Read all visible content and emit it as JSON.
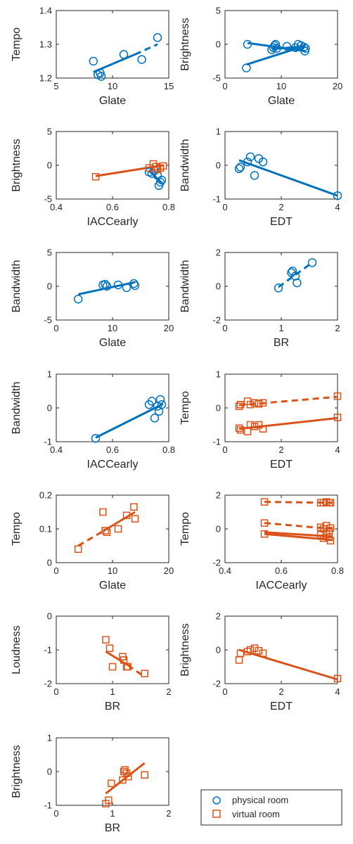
{
  "colors": {
    "physical": "#0072BD",
    "virtual": "#D95319",
    "axis": "#262626"
  },
  "legend": {
    "position": "bottom-right",
    "entries": [
      {
        "label": "physical room",
        "marker": "circle",
        "color": "#0072BD"
      },
      {
        "label": "virtual room",
        "marker": "square",
        "color": "#D95319"
      }
    ]
  },
  "chart_data": [
    {
      "type": "scatter",
      "xlabel": "Glate",
      "ylabel": "Tempo",
      "xlim": [
        5,
        15
      ],
      "ylim": [
        1.2,
        1.4
      ],
      "xticks": [
        5,
        10,
        15
      ],
      "xtick_labels": [
        "5",
        "10",
        "15"
      ],
      "yticks": [
        1.2,
        1.3,
        1.4
      ],
      "ytick_labels": [
        "1.2",
        "1.3",
        "1.4"
      ],
      "series": [
        {
          "group": "physical",
          "marker": "circle",
          "x": [
            8.3,
            8.7,
            9.0,
            8.9,
            11.0,
            12.6,
            14.0
          ],
          "y": [
            1.25,
            1.21,
            1.205,
            1.215,
            1.27,
            1.255,
            1.32
          ]
        }
      ],
      "fits": [
        {
          "group": "physical",
          "x": [
            8.3,
            12.0
          ],
          "y": [
            1.218,
            1.27
          ],
          "style": "solid"
        },
        {
          "group": "physical",
          "x": [
            12.0,
            14.0
          ],
          "y": [
            1.27,
            1.3
          ],
          "style": "dashed"
        }
      ]
    },
    {
      "type": "scatter",
      "xlabel": "Glate",
      "ylabel": "Brightness",
      "xlim": [
        0,
        20
      ],
      "ylim": [
        -5,
        5
      ],
      "xticks": [
        0,
        10,
        20
      ],
      "xtick_labels": [
        "0",
        "10",
        "20"
      ],
      "yticks": [
        -5,
        0,
        5
      ],
      "ytick_labels": [
        "-5",
        "0",
        "5"
      ],
      "series": [
        {
          "group": "physical",
          "marker": "circle",
          "x": [
            3.8,
            4.0,
            8.3,
            8.6,
            8.8,
            9.0,
            9.2,
            11.0,
            12.5,
            13.0,
            13.5,
            14.0,
            14.2,
            14.3
          ],
          "y": [
            -3.5,
            0.0,
            -0.8,
            -0.5,
            -0.2,
            0.0,
            -0.6,
            -0.3,
            -0.5,
            0.0,
            -0.2,
            -0.4,
            -1.0,
            -0.6
          ]
        }
      ],
      "fits": [
        {
          "group": "physical",
          "x": [
            3.8,
            14.3
          ],
          "y": [
            -3.0,
            -0.2
          ],
          "style": "solid"
        },
        {
          "group": "physical",
          "x": [
            4.0,
            14.3
          ],
          "y": [
            0.2,
            -1.0
          ],
          "style": "solid"
        },
        {
          "group": "physical",
          "x": [
            8.3,
            14.3
          ],
          "y": [
            -0.7,
            -0.3
          ],
          "style": "solid"
        }
      ]
    },
    {
      "type": "scatter",
      "xlabel": "IACCearly",
      "ylabel": "Brightness",
      "xlim": [
        0.4,
        0.8
      ],
      "ylim": [
        -5,
        5
      ],
      "xticks": [
        0.4,
        0.6,
        0.8
      ],
      "xtick_labels": [
        "0.4",
        "0.6",
        "0.8"
      ],
      "yticks": [
        -5,
        0,
        5
      ],
      "ytick_labels": [
        "-5",
        "0",
        "5"
      ],
      "series": [
        {
          "group": "physical",
          "marker": "circle",
          "x": [
            0.73,
            0.74,
            0.75,
            0.76,
            0.77,
            0.765,
            0.775
          ],
          "y": [
            -1.0,
            -1.2,
            -0.8,
            -1.5,
            -2.5,
            -3.0,
            -2.2
          ]
        },
        {
          "group": "virtual",
          "marker": "square",
          "x": [
            0.54,
            0.73,
            0.745,
            0.755,
            0.76,
            0.77,
            0.78
          ],
          "y": [
            -1.7,
            -0.4,
            0.2,
            -0.2,
            -0.6,
            -0.4,
            -0.1
          ]
        }
      ],
      "fits": [
        {
          "group": "physical",
          "x": [
            0.73,
            0.78
          ],
          "y": [
            -0.8,
            -2.8
          ],
          "style": "solid"
        },
        {
          "group": "virtual",
          "x": [
            0.54,
            0.78
          ],
          "y": [
            -1.6,
            0.0
          ],
          "style": "solid"
        }
      ]
    },
    {
      "type": "scatter",
      "xlabel": "EDT",
      "ylabel": "Bandwidth",
      "xlim": [
        0,
        4
      ],
      "ylim": [
        -1,
        1
      ],
      "xticks": [
        0,
        2,
        4
      ],
      "xtick_labels": [
        "0",
        "2",
        "4"
      ],
      "yticks": [
        -1,
        0,
        1
      ],
      "ytick_labels": [
        "-1",
        "0",
        "1"
      ],
      "series": [
        {
          "group": "physical",
          "marker": "circle",
          "x": [
            0.5,
            0.55,
            0.8,
            0.9,
            1.05,
            1.2,
            1.35,
            4.0
          ],
          "y": [
            -0.1,
            -0.05,
            0.1,
            0.25,
            -0.3,
            0.2,
            0.1,
            -0.9
          ]
        }
      ],
      "fits": [
        {
          "group": "physical",
          "x": [
            0.5,
            4.0
          ],
          "y": [
            0.15,
            -0.9
          ],
          "style": "solid"
        }
      ]
    },
    {
      "type": "scatter",
      "xlabel": "Glate",
      "ylabel": "Bandwidth",
      "xlim": [
        0,
        20
      ],
      "ylim": [
        -5,
        5
      ],
      "xticks": [
        0,
        10,
        20
      ],
      "xtick_labels": [
        "0",
        "10",
        "20"
      ],
      "yticks": [
        -5,
        0,
        5
      ],
      "ytick_labels": [
        "-5",
        "0",
        "5"
      ],
      "series": [
        {
          "group": "physical",
          "marker": "circle",
          "x": [
            3.9,
            8.3,
            8.7,
            9.0,
            11.0,
            12.5,
            13.8,
            14.0
          ],
          "y": [
            -1.9,
            0.2,
            0.3,
            0.0,
            0.2,
            -0.2,
            0.4,
            0.1
          ]
        }
      ],
      "fits": [
        {
          "group": "physical",
          "x": [
            3.9,
            14.0
          ],
          "y": [
            -1.2,
            0.6
          ],
          "style": "solid"
        }
      ]
    },
    {
      "type": "scatter",
      "xlabel": "BR",
      "ylabel": "Bandwidth",
      "xlim": [
        0,
        2
      ],
      "ylim": [
        -2,
        2
      ],
      "xticks": [
        0,
        1,
        2
      ],
      "xtick_labels": [
        "0",
        "1",
        "2"
      ],
      "yticks": [
        -2,
        0,
        2
      ],
      "ytick_labels": [
        "-2",
        "0",
        "2"
      ],
      "series": [
        {
          "group": "physical",
          "marker": "circle",
          "x": [
            0.95,
            1.18,
            1.2,
            1.25,
            1.28,
            1.55
          ],
          "y": [
            -0.1,
            0.8,
            0.9,
            0.6,
            0.2,
            1.4
          ]
        }
      ],
      "fits": [
        {
          "group": "physical",
          "x": [
            0.95,
            1.55
          ],
          "y": [
            -0.05,
            1.4
          ],
          "style": "dashed"
        }
      ]
    },
    {
      "type": "scatter",
      "xlabel": "IACCearly",
      "ylabel": "Bandwidth",
      "xlim": [
        0.4,
        0.8
      ],
      "ylim": [
        -1,
        1
      ],
      "xticks": [
        0.4,
        0.6,
        0.8
      ],
      "xtick_labels": [
        "0.4",
        "0.6",
        "0.8"
      ],
      "yticks": [
        -1,
        0,
        1
      ],
      "ytick_labels": [
        "-1",
        "0",
        "1"
      ],
      "series": [
        {
          "group": "physical",
          "marker": "circle",
          "x": [
            0.54,
            0.73,
            0.74,
            0.75,
            0.76,
            0.765,
            0.77,
            0.775
          ],
          "y": [
            -0.9,
            0.1,
            0.2,
            -0.3,
            0.05,
            -0.1,
            0.25,
            0.1
          ]
        }
      ],
      "fits": [
        {
          "group": "physical",
          "x": [
            0.54,
            0.78
          ],
          "y": [
            -0.88,
            0.12
          ],
          "style": "solid"
        }
      ]
    },
    {
      "type": "scatter",
      "xlabel": "EDT",
      "ylabel": "Tempo",
      "xlim": [
        0,
        4
      ],
      "ylim": [
        -1,
        1
      ],
      "xticks": [
        0,
        2,
        4
      ],
      "xtick_labels": [
        "0",
        "2",
        "4"
      ],
      "yticks": [
        -1,
        0,
        1
      ],
      "ytick_labels": [
        "-1",
        "0",
        "1"
      ],
      "series": [
        {
          "group": "virtual",
          "marker": "square",
          "x": [
            0.5,
            0.55,
            0.8,
            0.9,
            1.05,
            1.2,
            1.35,
            4.0
          ],
          "y": [
            0.05,
            0.1,
            0.2,
            0.1,
            0.15,
            0.12,
            0.15,
            0.35
          ]
        },
        {
          "group": "virtual",
          "marker": "square",
          "x": [
            0.5,
            0.55,
            0.8,
            0.9,
            1.05,
            1.2,
            1.35,
            4.0
          ],
          "y": [
            -0.6,
            -0.65,
            -0.7,
            -0.5,
            -0.55,
            -0.5,
            -0.62,
            -0.28
          ]
        }
      ],
      "fits": [
        {
          "group": "virtual",
          "x": [
            0.5,
            4.0
          ],
          "y": [
            0.08,
            0.33
          ],
          "style": "dashed"
        },
        {
          "group": "virtual",
          "x": [
            0.5,
            4.0
          ],
          "y": [
            -0.62,
            -0.3
          ],
          "style": "solid"
        }
      ]
    },
    {
      "type": "scatter",
      "xlabel": "Glate",
      "ylabel": "Tempo",
      "xlim": [
        0,
        20
      ],
      "ylim": [
        0,
        0.2
      ],
      "xticks": [
        0,
        10,
        20
      ],
      "xtick_labels": [
        "0",
        "10",
        "20"
      ],
      "yticks": [
        0,
        0.1,
        0.2
      ],
      "ytick_labels": [
        "0",
        "0.1",
        "0.2"
      ],
      "series": [
        {
          "group": "virtual",
          "marker": "square",
          "x": [
            3.9,
            8.3,
            8.7,
            9.0,
            11.0,
            12.5,
            13.8,
            14.0
          ],
          "y": [
            0.04,
            0.15,
            0.095,
            0.09,
            0.1,
            0.14,
            0.165,
            0.13
          ]
        }
      ],
      "fits": [
        {
          "group": "virtual",
          "x": [
            3.9,
            8.3
          ],
          "y": [
            0.05,
            0.093
          ],
          "style": "dashed"
        },
        {
          "group": "virtual",
          "x": [
            8.3,
            14.0
          ],
          "y": [
            0.093,
            0.15
          ],
          "style": "solid"
        }
      ]
    },
    {
      "type": "scatter",
      "xlabel": "IACCearly",
      "ylabel": "Tempo",
      "xlim": [
        0.4,
        0.8
      ],
      "ylim": [
        -2,
        2
      ],
      "xticks": [
        0.4,
        0.6,
        0.8
      ],
      "xtick_labels": [
        "0.4",
        "0.6",
        "0.8"
      ],
      "yticks": [
        -2,
        0,
        2
      ],
      "ytick_labels": [
        "-2",
        "0",
        "2"
      ],
      "series": [
        {
          "group": "virtual",
          "marker": "square",
          "x": [
            0.54,
            0.74,
            0.75,
            0.76,
            0.77,
            0.775
          ],
          "y": [
            1.6,
            1.55,
            1.55,
            1.6,
            1.55,
            1.55
          ]
        },
        {
          "group": "virtual",
          "marker": "square",
          "x": [
            0.54,
            0.74,
            0.75,
            0.76,
            0.77,
            0.775
          ],
          "y": [
            0.35,
            0.1,
            0.0,
            0.2,
            -0.1,
            0.05
          ]
        },
        {
          "group": "virtual",
          "marker": "square",
          "x": [
            0.54,
            0.74,
            0.75,
            0.76,
            0.77,
            0.775
          ],
          "y": [
            -0.3,
            -0.35,
            -0.55,
            -0.3,
            -0.5,
            -0.7
          ]
        }
      ],
      "fits": [
        {
          "group": "virtual",
          "x": [
            0.54,
            0.78
          ],
          "y": [
            1.6,
            1.55
          ],
          "style": "dashed"
        },
        {
          "group": "virtual",
          "x": [
            0.54,
            0.78
          ],
          "y": [
            0.35,
            0.0
          ],
          "style": "dashed"
        },
        {
          "group": "virtual",
          "x": [
            0.54,
            0.78
          ],
          "y": [
            -0.2,
            -0.45
          ],
          "style": "solid"
        },
        {
          "group": "virtual",
          "x": [
            0.54,
            0.78
          ],
          "y": [
            -0.3,
            -0.65
          ],
          "style": "solid"
        }
      ]
    },
    {
      "type": "scatter",
      "xlabel": "BR",
      "ylabel": "Loudness",
      "xlim": [
        0,
        2
      ],
      "ylim": [
        -2,
        0
      ],
      "xticks": [
        0,
        1,
        2
      ],
      "xtick_labels": [
        "0",
        "1",
        "2"
      ],
      "yticks": [
        -2,
        -1,
        0
      ],
      "ytick_labels": [
        "-2",
        "-1",
        "0"
      ],
      "series": [
        {
          "group": "virtual",
          "marker": "square",
          "x": [
            0.88,
            0.95,
            1.0,
            1.18,
            1.2,
            1.25,
            1.27,
            1.57
          ],
          "y": [
            -0.7,
            -0.95,
            -1.5,
            -1.2,
            -1.3,
            -1.5,
            -1.5,
            -1.7
          ]
        }
      ],
      "fits": [
        {
          "group": "virtual",
          "x": [
            0.88,
            1.27
          ],
          "y": [
            -1.05,
            -1.45
          ],
          "style": "solid"
        },
        {
          "group": "virtual",
          "x": [
            1.27,
            1.57
          ],
          "y": [
            -1.45,
            -1.8
          ],
          "style": "dashed"
        }
      ]
    },
    {
      "type": "scatter",
      "xlabel": "EDT",
      "ylabel": "Brightness",
      "xlim": [
        0,
        4
      ],
      "ylim": [
        -2,
        2
      ],
      "xticks": [
        0,
        2,
        4
      ],
      "xtick_labels": [
        "0",
        "2",
        "4"
      ],
      "yticks": [
        -2,
        0,
        2
      ],
      "ytick_labels": [
        "-2",
        "0",
        "2"
      ],
      "series": [
        {
          "group": "virtual",
          "marker": "square",
          "x": [
            0.5,
            0.55,
            0.8,
            0.9,
            1.05,
            1.2,
            1.35,
            4.0
          ],
          "y": [
            -0.6,
            -0.2,
            -0.1,
            0.0,
            0.1,
            -0.05,
            -0.2,
            -1.7
          ]
        }
      ],
      "fits": [
        {
          "group": "virtual",
          "x": [
            0.5,
            4.0
          ],
          "y": [
            0.0,
            -1.75
          ],
          "style": "solid"
        }
      ]
    },
    {
      "type": "scatter",
      "xlabel": "BR",
      "ylabel": "Brightness",
      "xlim": [
        0,
        2
      ],
      "ylim": [
        -1,
        1
      ],
      "xticks": [
        0,
        1,
        2
      ],
      "xtick_labels": [
        "0",
        "1",
        "2"
      ],
      "yticks": [
        -1,
        0,
        1
      ],
      "ytick_labels": [
        "-1",
        "0",
        "1"
      ],
      "series": [
        {
          "group": "virtual",
          "marker": "square",
          "x": [
            0.88,
            0.93,
            0.98,
            1.18,
            1.2,
            1.22,
            1.25,
            1.28,
            1.57
          ],
          "y": [
            -0.95,
            -0.85,
            -0.35,
            -0.25,
            0.0,
            0.05,
            -0.05,
            -0.15,
            -0.1
          ]
        }
      ],
      "fits": [
        {
          "group": "virtual",
          "x": [
            0.88,
            1.57
          ],
          "y": [
            -0.65,
            0.25
          ],
          "style": "solid"
        }
      ]
    }
  ]
}
